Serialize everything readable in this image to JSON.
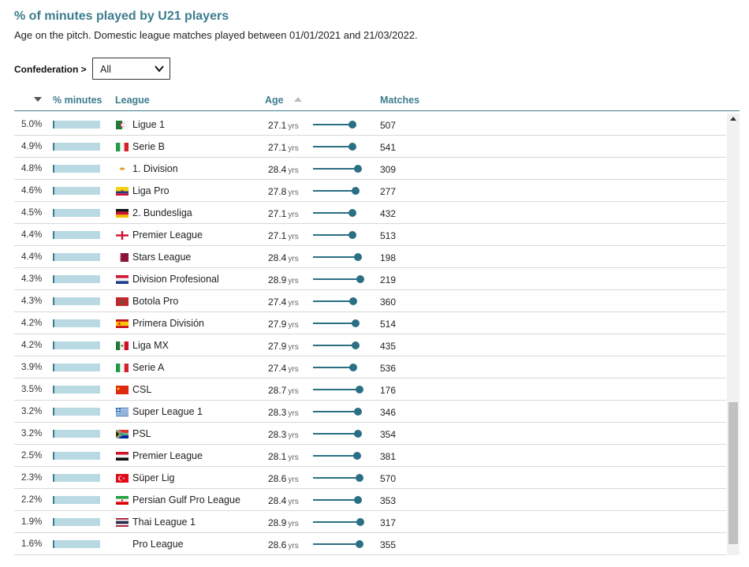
{
  "header": {
    "title": "% of minutes played by U21 players",
    "subtitle": "Age on the pitch. Domestic league matches played between 01/01/2021 and 21/03/2022."
  },
  "filter": {
    "label": "Confederation >",
    "selected": "All"
  },
  "columns": {
    "minutes": "% minutes",
    "league": "League",
    "age": "Age",
    "matches": "Matches"
  },
  "colors": {
    "accent": "#3d7c8e",
    "bar_fill": "#b9d9e3",
    "age_marker": "#2a6f83"
  },
  "rows": [
    {
      "pct": "5.0%",
      "pct_value": 5.0,
      "league": "Ligue 1",
      "flag": "algeria-flag",
      "age": "27.1",
      "age_value": 27.1,
      "matches": "507"
    },
    {
      "pct": "4.9%",
      "pct_value": 4.9,
      "league": "Serie B",
      "flag": "italy-flag",
      "age": "27.1",
      "age_value": 27.1,
      "matches": "541"
    },
    {
      "pct": "4.8%",
      "pct_value": 4.8,
      "league": "1. Division",
      "flag": "cyprus-flag",
      "age": "28.4",
      "age_value": 28.4,
      "matches": "309"
    },
    {
      "pct": "4.6%",
      "pct_value": 4.6,
      "league": "Liga Pro",
      "flag": "ecuador-flag",
      "age": "27.8",
      "age_value": 27.8,
      "matches": "277"
    },
    {
      "pct": "4.5%",
      "pct_value": 4.5,
      "league": "2. Bundesliga",
      "flag": "germany-flag",
      "age": "27.1",
      "age_value": 27.1,
      "matches": "432"
    },
    {
      "pct": "4.4%",
      "pct_value": 4.4,
      "league": "Premier League",
      "flag": "england-flag",
      "age": "27.1",
      "age_value": 27.1,
      "matches": "513"
    },
    {
      "pct": "4.4%",
      "pct_value": 4.4,
      "league": "Stars League",
      "flag": "qatar-flag",
      "age": "28.4",
      "age_value": 28.4,
      "matches": "198"
    },
    {
      "pct": "4.3%",
      "pct_value": 4.3,
      "league": "Division Profesional",
      "flag": "paraguay-flag",
      "age": "28.9",
      "age_value": 28.9,
      "matches": "219"
    },
    {
      "pct": "4.3%",
      "pct_value": 4.3,
      "league": "Botola Pro",
      "flag": "morocco-flag",
      "age": "27.4",
      "age_value": 27.4,
      "matches": "360"
    },
    {
      "pct": "4.2%",
      "pct_value": 4.2,
      "league": "Primera División",
      "flag": "spain-flag",
      "age": "27.9",
      "age_value": 27.9,
      "matches": "514"
    },
    {
      "pct": "4.2%",
      "pct_value": 4.2,
      "league": "Liga MX",
      "flag": "mexico-flag",
      "age": "27.9",
      "age_value": 27.9,
      "matches": "435"
    },
    {
      "pct": "3.9%",
      "pct_value": 3.9,
      "league": "Serie A",
      "flag": "italy-flag",
      "age": "27.4",
      "age_value": 27.4,
      "matches": "536"
    },
    {
      "pct": "3.5%",
      "pct_value": 3.5,
      "league": "CSL",
      "flag": "china-flag",
      "age": "28.7",
      "age_value": 28.7,
      "matches": "176"
    },
    {
      "pct": "3.2%",
      "pct_value": 3.2,
      "league": "Super League 1",
      "flag": "greece-flag",
      "age": "28.3",
      "age_value": 28.3,
      "matches": "346"
    },
    {
      "pct": "3.2%",
      "pct_value": 3.2,
      "league": "PSL",
      "flag": "south-africa-flag",
      "age": "28.3",
      "age_value": 28.3,
      "matches": "354"
    },
    {
      "pct": "2.5%",
      "pct_value": 2.5,
      "league": "Premier League",
      "flag": "egypt-flag",
      "age": "28.1",
      "age_value": 28.1,
      "matches": "381"
    },
    {
      "pct": "2.3%",
      "pct_value": 2.3,
      "league": "Süper Lig",
      "flag": "turkey-flag",
      "age": "28.6",
      "age_value": 28.6,
      "matches": "570"
    },
    {
      "pct": "2.2%",
      "pct_value": 2.2,
      "league": "Persian Gulf Pro League",
      "flag": "iran-flag",
      "age": "28.4",
      "age_value": 28.4,
      "matches": "353"
    },
    {
      "pct": "1.9%",
      "pct_value": 1.9,
      "league": "Thai League 1",
      "flag": "thailand-flag",
      "age": "28.9",
      "age_value": 28.9,
      "matches": "317"
    },
    {
      "pct": "1.6%",
      "pct_value": 1.6,
      "league": "Pro League",
      "flag": "",
      "age": "28.6",
      "age_value": 28.6,
      "matches": "355"
    }
  ],
  "units": {
    "age_suffix": "yrs"
  }
}
